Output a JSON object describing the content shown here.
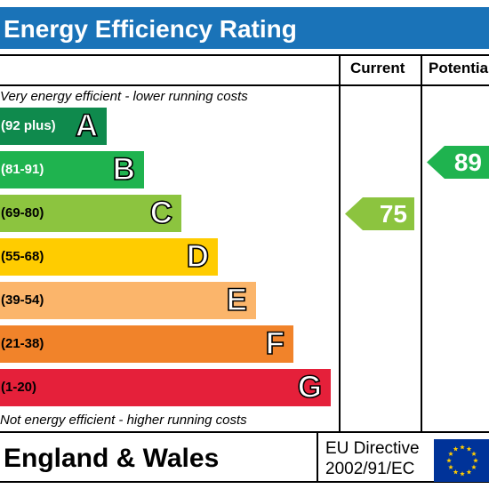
{
  "title": "Energy Efficiency Rating",
  "columns": {
    "current": "Current",
    "potential": "Potentia"
  },
  "notes": {
    "top": "Very energy efficient - lower running costs",
    "bottom": "Not energy efficient - higher running costs"
  },
  "bands": [
    {
      "range": "(92 plus)",
      "letter": "A",
      "color": "#0f8a4d"
    },
    {
      "range": "(81-91)",
      "letter": "B",
      "color": "#1fb34f"
    },
    {
      "range": "(69-80)",
      "letter": "C",
      "color": "#8cc43f"
    },
    {
      "range": "(55-68)",
      "letter": "D",
      "color": "#ffcc00"
    },
    {
      "range": "(39-54)",
      "letter": "E",
      "color": "#fbb56b"
    },
    {
      "range": "(21-38)",
      "letter": "F",
      "color": "#f1832a"
    },
    {
      "range": "(1-20)",
      "letter": "G",
      "color": "#e5203a"
    }
  ],
  "ratings": {
    "current": {
      "value": "75",
      "color": "#8cc43f"
    },
    "potential": {
      "value": "89",
      "color": "#1fb34f"
    }
  },
  "footer": {
    "region": "England & Wales",
    "directive_line1": "EU Directive",
    "directive_line2": "2002/91/EC",
    "flag_icon": "eu-flag-icon"
  }
}
